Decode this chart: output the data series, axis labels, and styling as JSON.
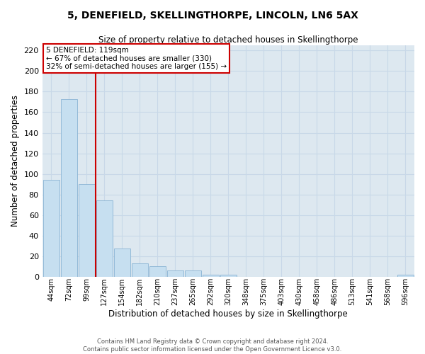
{
  "title": "5, DENEFIELD, SKELLINGTHORPE, LINCOLN, LN6 5AX",
  "subtitle": "Size of property relative to detached houses in Skellingthorpe",
  "xlabel": "Distribution of detached houses by size in Skellingthorpe",
  "ylabel": "Number of detached properties",
  "bar_labels": [
    "44sqm",
    "72sqm",
    "99sqm",
    "127sqm",
    "154sqm",
    "182sqm",
    "210sqm",
    "237sqm",
    "265sqm",
    "292sqm",
    "320sqm",
    "348sqm",
    "375sqm",
    "403sqm",
    "430sqm",
    "458sqm",
    "486sqm",
    "513sqm",
    "541sqm",
    "568sqm",
    "596sqm"
  ],
  "bar_values": [
    94,
    173,
    90,
    74,
    27,
    13,
    10,
    6,
    6,
    2,
    2,
    0,
    0,
    0,
    0,
    0,
    0,
    0,
    0,
    0,
    2
  ],
  "bar_color": "#c6dff0",
  "bar_edge_color": "#8ab4d4",
  "vline_position": 2.5,
  "vline_color": "#cc0000",
  "annotation_text": "5 DENEFIELD: 119sqm\n← 67% of detached houses are smaller (330)\n32% of semi-detached houses are larger (155) →",
  "annotation_box_color": "#ffffff",
  "annotation_box_edge": "#cc0000",
  "ylim": [
    0,
    225
  ],
  "yticks": [
    0,
    20,
    40,
    60,
    80,
    100,
    120,
    140,
    160,
    180,
    200,
    220
  ],
  "footer_text": "Contains HM Land Registry data © Crown copyright and database right 2024.\nContains public sector information licensed under the Open Government Licence v3.0.",
  "grid_color": "#c8d8e8",
  "background_color": "#dde8f0"
}
